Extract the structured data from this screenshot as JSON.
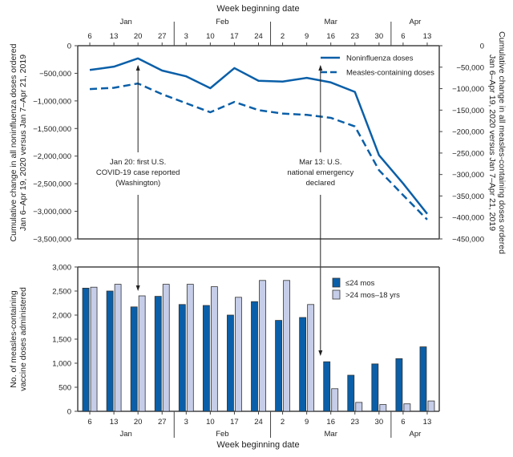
{
  "colors": {
    "line": "#0a5fa8",
    "bar_young": "#0a5fa8",
    "bar_old": "#c5cde8",
    "axis": "#444444"
  },
  "x_axis": {
    "title": "Week beginning date",
    "weeks": [
      "6",
      "13",
      "20",
      "27",
      "3",
      "10",
      "17",
      "24",
      "2",
      "9",
      "16",
      "23",
      "30",
      "6",
      "13"
    ],
    "months": [
      {
        "label": "Jan",
        "start": 0,
        "end": 4
      },
      {
        "label": "Feb",
        "start": 4,
        "end": 8
      },
      {
        "label": "Mar",
        "start": 8,
        "end": 13
      },
      {
        "label": "Apr",
        "start": 13,
        "end": 15
      }
    ]
  },
  "chart_data": [
    {
      "type": "line",
      "title": "",
      "xlabel": "Week beginning date",
      "ylabel_left": "Cumulative change in all noninfluenza doses ordered Jan 6–Apr 19, 2020 versus Jan 7–Apr 21, 2019",
      "ylabel_right": "Cumulative change in all measles-containing doses ordered Jan 6–Apr 19, 2020 versus Jan 7–Apr 21, 2019",
      "ylim_left": [
        -3500000,
        0
      ],
      "ylim_right": [
        -450000,
        0
      ],
      "yticks_left": [
        "0",
        "−500,000",
        "−1,000,000",
        "−1,500,000",
        "−2,000,000",
        "−2,500,000",
        "−3,000,000",
        "−3,500,000"
      ],
      "yticks_right": [
        "0",
        "−50,000",
        "−100,000",
        "−150,000",
        "−200,000",
        "−250,000",
        "−300,000",
        "−350,000",
        "−400,000",
        "−450,000"
      ],
      "legend_position": "top-right",
      "series": [
        {
          "name": "Noninfluenza doses",
          "axis": "left",
          "style": "solid",
          "values": [
            -440000,
            -380000,
            -230000,
            -450000,
            -555000,
            -770000,
            -406000,
            -636000,
            -650000,
            -583000,
            -665000,
            -837000,
            -1984000,
            -2495000,
            -3045000
          ]
        },
        {
          "name": "Measles-containing doses",
          "axis": "right",
          "style": "dashed",
          "values": [
            -101000,
            -98000,
            -88000,
            -113000,
            -134000,
            -155000,
            -131000,
            -150000,
            -158000,
            -161000,
            -168000,
            -188000,
            -290000,
            -348000,
            -405000
          ]
        }
      ],
      "annotations": [
        {
          "week_index": 2,
          "lines": [
            "Jan 20: first U.S.",
            "COVID-19 case reported",
            "(Washington)"
          ]
        },
        {
          "week_index": 9.57,
          "lines": [
            "Mar 13: U.S.",
            "national emergency",
            "declared"
          ]
        }
      ]
    },
    {
      "type": "bar",
      "ylabel": "No. of measles-containing vaccine doses administered",
      "ylim": [
        0,
        3000
      ],
      "yticks": [
        "0",
        "500",
        "1,000",
        "1,500",
        "2,000",
        "2,500",
        "3,000"
      ],
      "legend_position": "top-right",
      "series": [
        {
          "name": "≤24 mos",
          "values": [
            2560,
            2500,
            2170,
            2390,
            2220,
            2200,
            2000,
            2280,
            1890,
            1950,
            1030,
            750,
            985,
            1095,
            1340
          ]
        },
        {
          "name": ">24 mos–18 yrs",
          "values": [
            2580,
            2640,
            2400,
            2640,
            2640,
            2590,
            2370,
            2720,
            2720,
            2220,
            470,
            185,
            140,
            155,
            215
          ]
        }
      ]
    }
  ]
}
